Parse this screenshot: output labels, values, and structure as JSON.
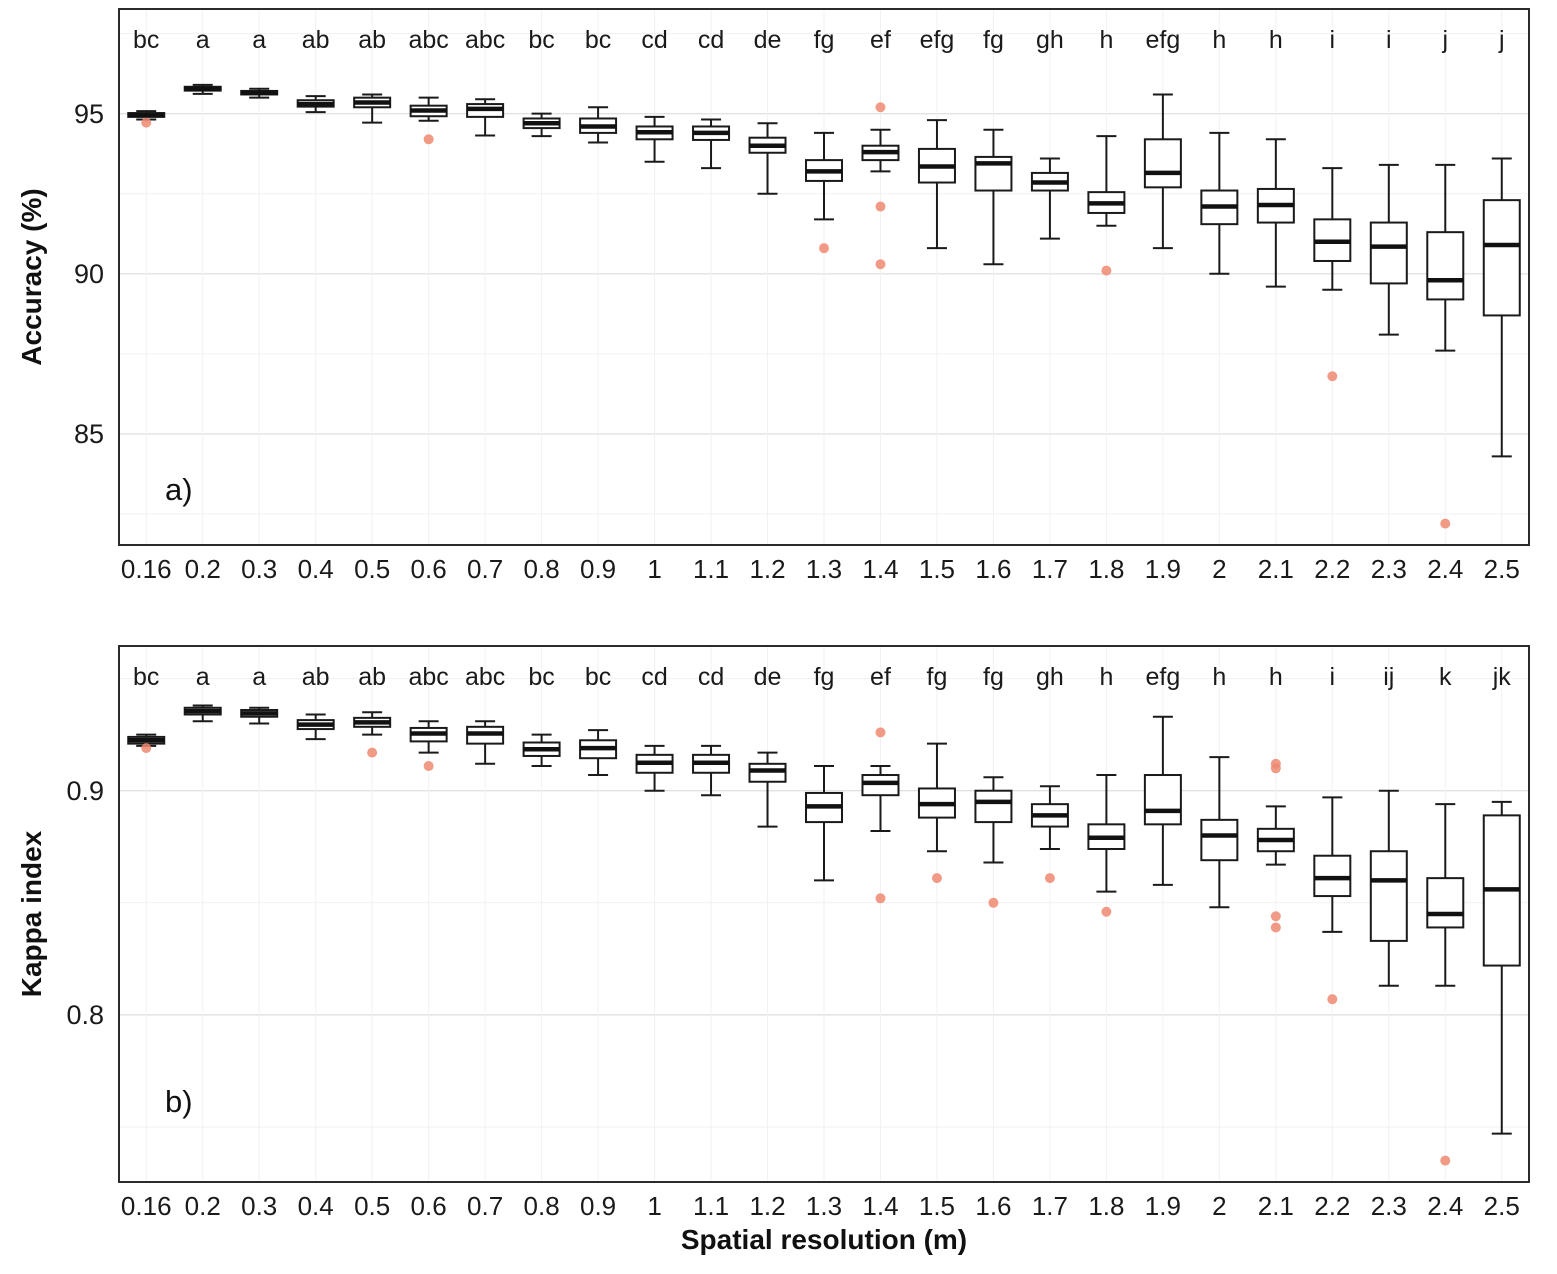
{
  "xlabel": "Spatial resolution (m)",
  "outlier_color": "#ee8a72",
  "box_stroke_color": "#1a1a1a",
  "grid_major_color": "#e2e2e2",
  "grid_minor_color": "#f1f1f1",
  "chart_data": [
    {
      "type": "boxplot",
      "panel_label": "a)",
      "title": "",
      "xlabel": "Spatial resolution (m)",
      "ylabel": "Accuracy (%)",
      "ylim": [
        81.5,
        98.3
      ],
      "yticks": [
        85,
        90,
        95
      ],
      "ytick_labels": [
        "85",
        "90",
        "95"
      ],
      "minor_yticks": [
        82.5,
        87.5,
        92.5,
        97.5
      ],
      "grid": true,
      "categories": [
        "0.16",
        "0.2",
        "0.3",
        "0.4",
        "0.5",
        "0.6",
        "0.7",
        "0.8",
        "0.9",
        "1",
        "1.1",
        "1.2",
        "1.3",
        "1.4",
        "1.5",
        "1.6",
        "1.7",
        "1.8",
        "1.9",
        "2",
        "2.1",
        "2.2",
        "2.3",
        "2.4",
        "2.5"
      ],
      "sig_letters": [
        "bc",
        "a",
        "a",
        "ab",
        "ab",
        "abc",
        "abc",
        "bc",
        "bc",
        "cd",
        "cd",
        "de",
        "fg",
        "ef",
        "efg",
        "fg",
        "gh",
        "h",
        "efg",
        "h",
        "h",
        "i",
        "i",
        "j",
        "j"
      ],
      "boxes": [
        {
          "lo": 94.82,
          "q1": 94.9,
          "med": 94.95,
          "q3": 95.02,
          "hi": 95.08,
          "out": [
            94.72
          ]
        },
        {
          "lo": 95.62,
          "q1": 95.72,
          "med": 95.78,
          "q3": 95.84,
          "hi": 95.9,
          "out": []
        },
        {
          "lo": 95.5,
          "q1": 95.6,
          "med": 95.65,
          "q3": 95.71,
          "hi": 95.78,
          "out": []
        },
        {
          "lo": 95.05,
          "q1": 95.22,
          "med": 95.3,
          "q3": 95.42,
          "hi": 95.55,
          "out": []
        },
        {
          "lo": 94.72,
          "q1": 95.2,
          "med": 95.35,
          "q3": 95.5,
          "hi": 95.6,
          "out": []
        },
        {
          "lo": 94.78,
          "q1": 94.92,
          "med": 95.1,
          "q3": 95.25,
          "hi": 95.5,
          "out": [
            94.2
          ]
        },
        {
          "lo": 94.32,
          "q1": 94.9,
          "med": 95.15,
          "q3": 95.3,
          "hi": 95.45,
          "out": []
        },
        {
          "lo": 94.3,
          "q1": 94.55,
          "med": 94.7,
          "q3": 94.85,
          "hi": 95.0,
          "out": []
        },
        {
          "lo": 94.1,
          "q1": 94.4,
          "med": 94.6,
          "q3": 94.85,
          "hi": 95.2,
          "out": []
        },
        {
          "lo": 93.5,
          "q1": 94.2,
          "med": 94.42,
          "q3": 94.6,
          "hi": 94.9,
          "out": []
        },
        {
          "lo": 93.3,
          "q1": 94.18,
          "med": 94.4,
          "q3": 94.6,
          "hi": 94.82,
          "out": []
        },
        {
          "lo": 92.5,
          "q1": 93.78,
          "med": 94.0,
          "q3": 94.25,
          "hi": 94.7,
          "out": []
        },
        {
          "lo": 91.7,
          "q1": 92.9,
          "med": 93.2,
          "q3": 93.55,
          "hi": 94.4,
          "out": [
            90.8
          ]
        },
        {
          "lo": 93.2,
          "q1": 93.55,
          "med": 93.8,
          "q3": 94.0,
          "hi": 94.5,
          "out": [
            95.2,
            92.1,
            90.3
          ]
        },
        {
          "lo": 90.8,
          "q1": 92.85,
          "med": 93.35,
          "q3": 93.9,
          "hi": 94.8,
          "out": []
        },
        {
          "lo": 90.3,
          "q1": 92.6,
          "med": 93.45,
          "q3": 93.65,
          "hi": 94.5,
          "out": []
        },
        {
          "lo": 91.1,
          "q1": 92.6,
          "med": 92.85,
          "q3": 93.15,
          "hi": 93.6,
          "out": []
        },
        {
          "lo": 91.5,
          "q1": 91.9,
          "med": 92.2,
          "q3": 92.55,
          "hi": 94.3,
          "out": [
            90.1
          ]
        },
        {
          "lo": 90.8,
          "q1": 92.7,
          "med": 93.15,
          "q3": 94.2,
          "hi": 95.6,
          "out": []
        },
        {
          "lo": 90.0,
          "q1": 91.55,
          "med": 92.1,
          "q3": 92.6,
          "hi": 94.4,
          "out": []
        },
        {
          "lo": 89.6,
          "q1": 91.6,
          "med": 92.15,
          "q3": 92.65,
          "hi": 94.2,
          "out": []
        },
        {
          "lo": 89.5,
          "q1": 90.4,
          "med": 91.0,
          "q3": 91.7,
          "hi": 93.3,
          "out": [
            86.8
          ]
        },
        {
          "lo": 88.1,
          "q1": 89.7,
          "med": 90.85,
          "q3": 91.6,
          "hi": 93.4,
          "out": []
        },
        {
          "lo": 87.6,
          "q1": 89.2,
          "med": 89.8,
          "q3": 91.3,
          "hi": 93.4,
          "out": [
            82.2
          ]
        },
        {
          "lo": 84.3,
          "q1": 88.7,
          "med": 90.9,
          "q3": 92.3,
          "hi": 93.6,
          "out": []
        }
      ]
    },
    {
      "type": "boxplot",
      "panel_label": "b)",
      "title": "",
      "xlabel": "Spatial resolution (m)",
      "ylabel": "Kappa index",
      "ylim": [
        0.725,
        0.965
      ],
      "yticks": [
        0.8,
        0.9
      ],
      "ytick_labels": [
        "0.8",
        "0.9"
      ],
      "minor_yticks": [
        0.75,
        0.85,
        0.95
      ],
      "grid": true,
      "categories": [
        "0.16",
        "0.2",
        "0.3",
        "0.4",
        "0.5",
        "0.6",
        "0.7",
        "0.8",
        "0.9",
        "1",
        "1.1",
        "1.2",
        "1.3",
        "1.4",
        "1.5",
        "1.6",
        "1.7",
        "1.8",
        "1.9",
        "2",
        "2.1",
        "2.2",
        "2.3",
        "2.4",
        "2.5"
      ],
      "sig_letters": [
        "bc",
        "a",
        "a",
        "ab",
        "ab",
        "abc",
        "abc",
        "bc",
        "bc",
        "cd",
        "cd",
        "de",
        "fg",
        "ef",
        "fg",
        "fg",
        "gh",
        "h",
        "efg",
        "h",
        "h",
        "i",
        "ij",
        "k",
        "jk"
      ],
      "boxes": [
        {
          "lo": 0.92,
          "q1": 0.921,
          "med": 0.9225,
          "q3": 0.924,
          "hi": 0.925,
          "out": [
            0.919
          ]
        },
        {
          "lo": 0.931,
          "q1": 0.934,
          "med": 0.9355,
          "q3": 0.937,
          "hi": 0.938,
          "out": []
        },
        {
          "lo": 0.93,
          "q1": 0.933,
          "med": 0.9345,
          "q3": 0.936,
          "hi": 0.937,
          "out": []
        },
        {
          "lo": 0.923,
          "q1": 0.9275,
          "med": 0.9295,
          "q3": 0.9315,
          "hi": 0.934,
          "out": []
        },
        {
          "lo": 0.925,
          "q1": 0.9285,
          "med": 0.9305,
          "q3": 0.9325,
          "hi": 0.935,
          "out": [
            0.917
          ]
        },
        {
          "lo": 0.917,
          "q1": 0.922,
          "med": 0.9255,
          "q3": 0.928,
          "hi": 0.931,
          "out": [
            0.911
          ]
        },
        {
          "lo": 0.912,
          "q1": 0.921,
          "med": 0.9255,
          "q3": 0.9285,
          "hi": 0.931,
          "out": []
        },
        {
          "lo": 0.911,
          "q1": 0.9155,
          "med": 0.9185,
          "q3": 0.9215,
          "hi": 0.925,
          "out": []
        },
        {
          "lo": 0.907,
          "q1": 0.9145,
          "med": 0.919,
          "q3": 0.9225,
          "hi": 0.927,
          "out": []
        },
        {
          "lo": 0.9,
          "q1": 0.908,
          "med": 0.9125,
          "q3": 0.916,
          "hi": 0.92,
          "out": []
        },
        {
          "lo": 0.898,
          "q1": 0.908,
          "med": 0.9125,
          "q3": 0.916,
          "hi": 0.92,
          "out": []
        },
        {
          "lo": 0.884,
          "q1": 0.904,
          "med": 0.909,
          "q3": 0.912,
          "hi": 0.917,
          "out": []
        },
        {
          "lo": 0.86,
          "q1": 0.886,
          "med": 0.893,
          "q3": 0.899,
          "hi": 0.911,
          "out": []
        },
        {
          "lo": 0.882,
          "q1": 0.898,
          "med": 0.9035,
          "q3": 0.907,
          "hi": 0.911,
          "out": [
            0.926,
            0.852
          ]
        },
        {
          "lo": 0.873,
          "q1": 0.888,
          "med": 0.894,
          "q3": 0.901,
          "hi": 0.921,
          "out": [
            0.861
          ]
        },
        {
          "lo": 0.868,
          "q1": 0.886,
          "med": 0.895,
          "q3": 0.9,
          "hi": 0.906,
          "out": [
            0.85
          ]
        },
        {
          "lo": 0.874,
          "q1": 0.884,
          "med": 0.889,
          "q3": 0.894,
          "hi": 0.902,
          "out": [
            0.861
          ]
        },
        {
          "lo": 0.855,
          "q1": 0.874,
          "med": 0.879,
          "q3": 0.885,
          "hi": 0.907,
          "out": [
            0.846
          ]
        },
        {
          "lo": 0.858,
          "q1": 0.885,
          "med": 0.891,
          "q3": 0.907,
          "hi": 0.933,
          "out": []
        },
        {
          "lo": 0.848,
          "q1": 0.869,
          "med": 0.88,
          "q3": 0.887,
          "hi": 0.915,
          "out": []
        },
        {
          "lo": 0.867,
          "q1": 0.873,
          "med": 0.878,
          "q3": 0.883,
          "hi": 0.893,
          "out": [
            0.912,
            0.91,
            0.844,
            0.839
          ]
        },
        {
          "lo": 0.837,
          "q1": 0.853,
          "med": 0.861,
          "q3": 0.871,
          "hi": 0.897,
          "out": [
            0.807
          ]
        },
        {
          "lo": 0.813,
          "q1": 0.833,
          "med": 0.86,
          "q3": 0.873,
          "hi": 0.9,
          "out": []
        },
        {
          "lo": 0.813,
          "q1": 0.839,
          "med": 0.845,
          "q3": 0.861,
          "hi": 0.894,
          "out": [
            0.735
          ]
        },
        {
          "lo": 0.747,
          "q1": 0.822,
          "med": 0.856,
          "q3": 0.889,
          "hi": 0.895,
          "out": []
        }
      ]
    }
  ]
}
